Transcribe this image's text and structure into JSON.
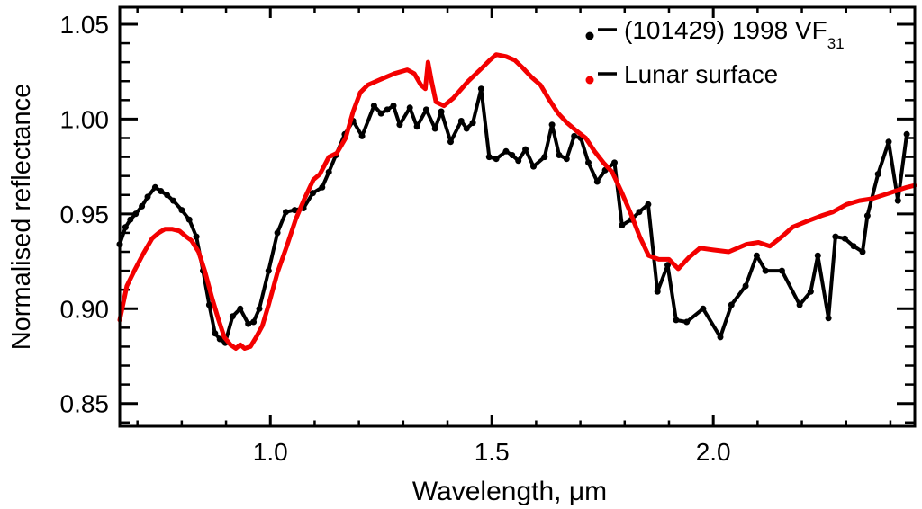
{
  "chart_data": {
    "type": "line",
    "title": "",
    "xlabel": "Wavelength, μm",
    "ylabel": "Normalised reflectance",
    "xlim": [
      0.66,
      2.455
    ],
    "ylim": [
      0.838,
      1.059
    ],
    "grid": false,
    "x_ticks_labeled": [
      1.0,
      1.5,
      2.0
    ],
    "x_tick_labels": [
      "1.0",
      "1.5",
      "2.0"
    ],
    "x_minor_step": 0.1,
    "y_ticks_labeled": [
      0.85,
      0.9,
      0.95,
      1.0,
      1.05
    ],
    "y_tick_labels": [
      "0.85",
      "0.90",
      "0.95",
      "1.00",
      "1.05"
    ],
    "y_minor_step": 0.01,
    "legend_position": "top-right",
    "legend": {
      "entries": [
        {
          "key": "asteroid-1998-vf31",
          "label_main": "(101429) 1998 VF",
          "label_sub": "31",
          "marker_color": "#000000"
        },
        {
          "key": "lunar-surface",
          "label_main": "Lunar surface",
          "label_sub": "",
          "marker_color": "#f30000"
        }
      ]
    },
    "series": [
      {
        "key": "asteroid-1998-vf31",
        "name": "(101429) 1998 VF31",
        "color": "#000000",
        "marker": "circle",
        "marker_radius": 3.5,
        "stroke_width": 4,
        "points": [
          [
            0.66,
            0.934
          ],
          [
            0.673,
            0.943
          ],
          [
            0.684,
            0.947
          ],
          [
            0.696,
            0.95
          ],
          [
            0.71,
            0.954
          ],
          [
            0.723,
            0.959
          ],
          [
            0.74,
            0.964
          ],
          [
            0.753,
            0.962
          ],
          [
            0.767,
            0.96
          ],
          [
            0.781,
            0.957
          ],
          [
            0.8,
            0.952
          ],
          [
            0.817,
            0.947
          ],
          [
            0.833,
            0.938
          ],
          [
            0.848,
            0.92
          ],
          [
            0.862,
            0.902
          ],
          [
            0.875,
            0.887
          ],
          [
            0.886,
            0.884
          ],
          [
            0.898,
            0.882
          ],
          [
            0.915,
            0.896
          ],
          [
            0.932,
            0.9
          ],
          [
            0.95,
            0.892
          ],
          [
            0.962,
            0.893
          ],
          [
            0.975,
            0.9
          ],
          [
            0.996,
            0.92
          ],
          [
            1.016,
            0.94
          ],
          [
            1.035,
            0.951
          ],
          [
            1.055,
            0.952
          ],
          [
            1.075,
            0.953
          ],
          [
            1.096,
            0.961
          ],
          [
            1.117,
            0.964
          ],
          [
            1.132,
            0.972
          ],
          [
            1.148,
            0.981
          ],
          [
            1.168,
            0.992
          ],
          [
            1.187,
            0.999
          ],
          [
            1.207,
            0.991
          ],
          [
            1.234,
            1.007
          ],
          [
            1.25,
            1.003
          ],
          [
            1.264,
            1.005
          ],
          [
            1.278,
            1.007
          ],
          [
            1.292,
            0.997
          ],
          [
            1.315,
            1.006
          ],
          [
            1.331,
            0.996
          ],
          [
            1.352,
            1.005
          ],
          [
            1.372,
            0.995
          ],
          [
            1.386,
            1.004
          ],
          [
            1.407,
            0.988
          ],
          [
            1.431,
            0.999
          ],
          [
            1.443,
            0.995
          ],
          [
            1.457,
            0.998
          ],
          [
            1.476,
            1.016
          ],
          [
            1.494,
            0.98
          ],
          [
            1.51,
            0.979
          ],
          [
            1.532,
            0.983
          ],
          [
            1.546,
            0.981
          ],
          [
            1.56,
            0.978
          ],
          [
            1.576,
            0.984
          ],
          [
            1.594,
            0.975
          ],
          [
            1.619,
            0.98
          ],
          [
            1.636,
            0.997
          ],
          [
            1.652,
            0.981
          ],
          [
            1.669,
            0.979
          ],
          [
            1.686,
            0.991
          ],
          [
            1.701,
            0.99
          ],
          [
            1.718,
            0.977
          ],
          [
            1.738,
            0.967
          ],
          [
            1.756,
            0.973
          ],
          [
            1.777,
            0.977
          ],
          [
            1.794,
            0.944
          ],
          [
            1.815,
            0.947
          ],
          [
            1.833,
            0.951
          ],
          [
            1.853,
            0.955
          ],
          [
            1.874,
            0.909
          ],
          [
            1.897,
            0.923
          ],
          [
            1.916,
            0.894
          ],
          [
            1.94,
            0.893
          ],
          [
            1.977,
            0.9
          ],
          [
            2.016,
            0.885
          ],
          [
            2.041,
            0.902
          ],
          [
            2.073,
            0.912
          ],
          [
            2.098,
            0.928
          ],
          [
            2.118,
            0.92
          ],
          [
            2.155,
            0.92
          ],
          [
            2.195,
            0.902
          ],
          [
            2.22,
            0.909
          ],
          [
            2.236,
            0.928
          ],
          [
            2.26,
            0.895
          ],
          [
            2.276,
            0.938
          ],
          [
            2.297,
            0.937
          ],
          [
            2.317,
            0.933
          ],
          [
            2.337,
            0.93
          ],
          [
            2.348,
            0.949
          ],
          [
            2.372,
            0.971
          ],
          [
            2.396,
            0.988
          ],
          [
            2.417,
            0.957
          ],
          [
            2.437,
            0.992
          ]
        ]
      },
      {
        "key": "lunar-surface",
        "name": "Lunar surface",
        "color": "#f30000",
        "marker": "none",
        "marker_radius": 0,
        "stroke_width": 5,
        "points": [
          [
            0.66,
            0.894
          ],
          [
            0.676,
            0.912
          ],
          [
            0.693,
            0.92
          ],
          [
            0.713,
            0.929
          ],
          [
            0.733,
            0.937
          ],
          [
            0.748,
            0.94
          ],
          [
            0.762,
            0.942
          ],
          [
            0.778,
            0.942
          ],
          [
            0.795,
            0.941
          ],
          [
            0.81,
            0.938
          ],
          [
            0.822,
            0.936
          ],
          [
            0.838,
            0.93
          ],
          [
            0.852,
            0.92
          ],
          [
            0.868,
            0.906
          ],
          [
            0.882,
            0.895
          ],
          [
            0.896,
            0.885
          ],
          [
            0.91,
            0.881
          ],
          [
            0.922,
            0.879
          ],
          [
            0.932,
            0.881
          ],
          [
            0.942,
            0.879
          ],
          [
            0.955,
            0.88
          ],
          [
            0.968,
            0.885
          ],
          [
            0.982,
            0.891
          ],
          [
            0.996,
            0.902
          ],
          [
            1.016,
            0.919
          ],
          [
            1.037,
            0.933
          ],
          [
            1.057,
            0.947
          ],
          [
            1.077,
            0.958
          ],
          [
            1.097,
            0.968
          ],
          [
            1.112,
            0.971
          ],
          [
            1.132,
            0.98
          ],
          [
            1.15,
            0.982
          ],
          [
            1.17,
            0.99
          ],
          [
            1.187,
            1.004
          ],
          [
            1.203,
            1.014
          ],
          [
            1.22,
            1.018
          ],
          [
            1.25,
            1.021
          ],
          [
            1.28,
            1.024
          ],
          [
            1.309,
            1.026
          ],
          [
            1.325,
            1.024
          ],
          [
            1.34,
            1.018
          ],
          [
            1.35,
            1.016
          ],
          [
            1.356,
            1.03
          ],
          [
            1.364,
            1.02
          ],
          [
            1.374,
            1.009
          ],
          [
            1.392,
            1.007
          ],
          [
            1.413,
            1.011
          ],
          [
            1.447,
            1.02
          ],
          [
            1.478,
            1.027
          ],
          [
            1.495,
            1.031
          ],
          [
            1.51,
            1.034
          ],
          [
            1.532,
            1.033
          ],
          [
            1.552,
            1.031
          ],
          [
            1.57,
            1.027
          ],
          [
            1.59,
            1.022
          ],
          [
            1.61,
            1.018
          ],
          [
            1.63,
            1.01
          ],
          [
            1.65,
            1.003
          ],
          [
            1.67,
            0.998
          ],
          [
            1.69,
            0.994
          ],
          [
            1.712,
            0.99
          ],
          [
            1.732,
            0.983
          ],
          [
            1.752,
            0.977
          ],
          [
            1.772,
            0.972
          ],
          [
            1.794,
            0.961
          ],
          [
            1.814,
            0.95
          ],
          [
            1.834,
            0.938
          ],
          [
            1.854,
            0.928
          ],
          [
            1.877,
            0.926
          ],
          [
            1.9,
            0.926
          ],
          [
            1.921,
            0.921
          ],
          [
            1.945,
            0.927
          ],
          [
            1.97,
            0.932
          ],
          [
            2.0,
            0.931
          ],
          [
            2.035,
            0.93
          ],
          [
            2.075,
            0.934
          ],
          [
            2.102,
            0.935
          ],
          [
            2.128,
            0.933
          ],
          [
            2.155,
            0.938
          ],
          [
            2.179,
            0.943
          ],
          [
            2.21,
            0.946
          ],
          [
            2.244,
            0.949
          ],
          [
            2.27,
            0.951
          ],
          [
            2.301,
            0.955
          ],
          [
            2.33,
            0.957
          ],
          [
            2.358,
            0.958
          ],
          [
            2.398,
            0.961
          ],
          [
            2.437,
            0.964
          ],
          [
            2.455,
            0.965
          ]
        ]
      }
    ]
  }
}
